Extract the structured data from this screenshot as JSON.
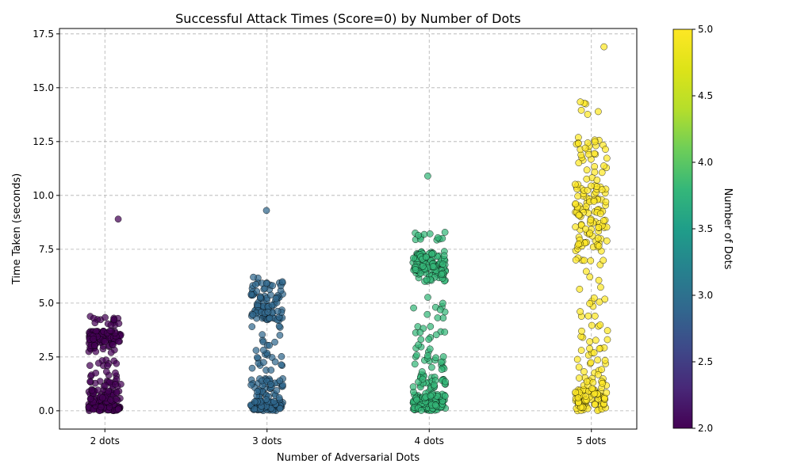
{
  "chart_data": {
    "type": "scatter",
    "title": "Successful Attack Times (Score=0) by Number of Dots",
    "xlabel": "Number of Adversarial Dots",
    "ylabel": "Time Taken (seconds)",
    "categories": [
      "2 dots",
      "3 dots",
      "4 dots",
      "5 dots"
    ],
    "category_values": [
      2,
      3,
      4,
      5
    ],
    "ylim": [
      -0.85,
      17.75
    ],
    "yticks": [
      0.0,
      2.5,
      5.0,
      7.5,
      10.0,
      12.5,
      15.0,
      17.5
    ],
    "ytick_labels": [
      "0.0",
      "2.5",
      "5.0",
      "7.5",
      "10.0",
      "12.5",
      "15.0",
      "17.5"
    ],
    "grid": true,
    "colorbar": {
      "label": "Number of Dots",
      "range": [
        2.0,
        5.0
      ],
      "ticks": [
        2.0,
        2.5,
        3.0,
        3.5,
        4.0,
        4.5,
        5.0
      ],
      "tick_labels": [
        "2.0",
        "2.5",
        "3.0",
        "3.5",
        "4.0",
        "4.5",
        "5.0"
      ],
      "colormap": "viridis"
    },
    "colors": {
      "2 dots": "#440154",
      "3 dots": "#31688e",
      "4 dots": "#35b779",
      "5 dots": "#fde725"
    },
    "clusters": [
      {
        "category": "2 dots",
        "groups": [
          {
            "range": [
              0.0,
              0.3
            ],
            "count": 90
          },
          {
            "range": [
              0.3,
              1.0
            ],
            "count": 55
          },
          {
            "range": [
              1.0,
              1.8
            ],
            "count": 22
          },
          {
            "range": [
              1.8,
              2.4
            ],
            "count": 10
          },
          {
            "range": [
              2.6,
              3.0
            ],
            "count": 10
          },
          {
            "range": [
              3.0,
              3.7
            ],
            "count": 75
          },
          {
            "range": [
              3.7,
              4.4
            ],
            "count": 18
          }
        ],
        "outliers": [
          8.9
        ]
      },
      {
        "category": "3 dots",
        "groups": [
          {
            "range": [
              0.0,
              0.4
            ],
            "count": 95
          },
          {
            "range": [
              0.4,
              1.5
            ],
            "count": 55
          },
          {
            "range": [
              1.6,
              2.5
            ],
            "count": 12
          },
          {
            "range": [
              2.5,
              4.0
            ],
            "count": 16
          },
          {
            "range": [
              4.2,
              5.7
            ],
            "count": 80
          },
          {
            "range": [
              5.8,
              6.3
            ],
            "count": 14
          }
        ],
        "outliers": [
          9.3
        ]
      },
      {
        "category": "4 dots",
        "groups": [
          {
            "range": [
              0.0,
              0.5
            ],
            "count": 95
          },
          {
            "range": [
              0.5,
              1.7
            ],
            "count": 55
          },
          {
            "range": [
              1.7,
              3.0
            ],
            "count": 22
          },
          {
            "range": [
              3.0,
              4.6
            ],
            "count": 16
          },
          {
            "range": [
              4.6,
              5.6
            ],
            "count": 6
          },
          {
            "range": [
              6.0,
              7.4
            ],
            "count": 110
          },
          {
            "range": [
              7.9,
              8.3
            ],
            "count": 12
          }
        ],
        "outliers": [
          10.9
        ]
      },
      {
        "category": "5 dots",
        "groups": [
          {
            "range": [
              0.0,
              1.0
            ],
            "count": 85
          },
          {
            "range": [
              1.0,
              3.0
            ],
            "count": 35
          },
          {
            "range": [
              3.0,
              5.5
            ],
            "count": 20
          },
          {
            "range": [
              5.5,
              7.5
            ],
            "count": 14
          },
          {
            "range": [
              7.5,
              10.5
            ],
            "count": 95
          },
          {
            "range": [
              10.5,
              12.7
            ],
            "count": 35
          },
          {
            "range": [
              13.5,
              14.5
            ],
            "count": 6
          }
        ],
        "outliers": [
          16.9
        ]
      }
    ]
  }
}
